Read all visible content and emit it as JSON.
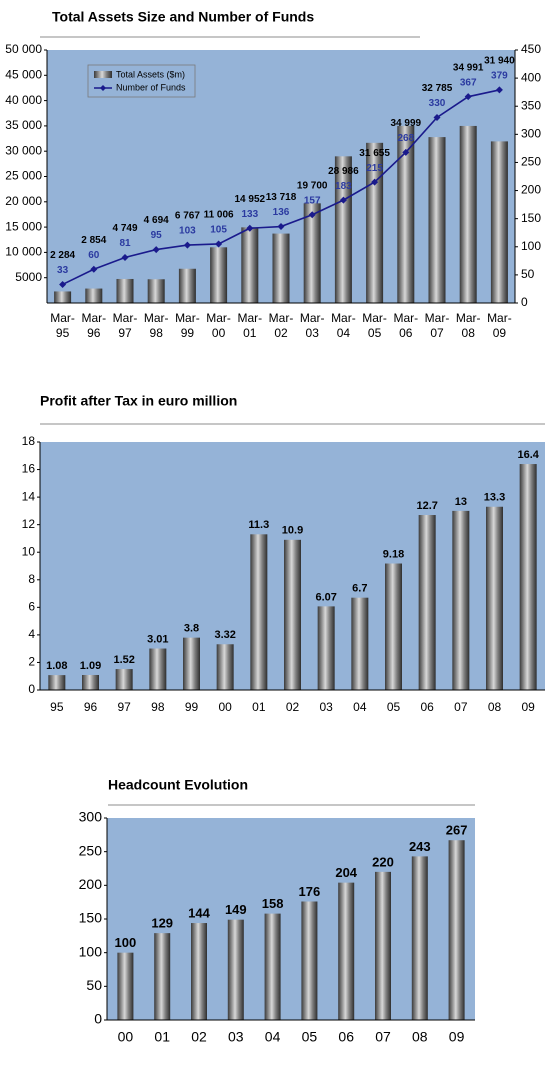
{
  "chart_data": [
    {
      "type": "bar-line",
      "title": "Total Assets Size and Number of Funds",
      "categories": [
        "Mar-95",
        "Mar-96",
        "Mar-97",
        "Mar-98",
        "Mar-99",
        "Mar-00",
        "Mar-01",
        "Mar-02",
        "Mar-03",
        "Mar-04",
        "Mar-05",
        "Mar-06",
        "Mar-07",
        "Mar-08",
        "Mar-09"
      ],
      "series": [
        {
          "name": "Total Assets ($m)",
          "color": "#7f7f7f",
          "values": [
            2284,
            2854,
            4749,
            4694,
            6767,
            11006,
            14952,
            13718,
            19700,
            28986,
            31655,
            34999,
            32785,
            34991,
            31940
          ],
          "value_labels": [
            "2 284",
            "2 854",
            "4 749",
            "4 694",
            "6 767",
            "11 006",
            "14 952",
            "13 718",
            "19 700",
            "28 986",
            "31 655",
            "34 999",
            "32 785",
            "34 991",
            "31 940"
          ]
        },
        {
          "name": "Number of Funds",
          "color": "#1a1a8c",
          "axis": "y2",
          "values": [
            33,
            60,
            81,
            95,
            103,
            105,
            133,
            136,
            157,
            183,
            215,
            268,
            330,
            367,
            379
          ]
        }
      ],
      "ylim": [
        0,
        50000
      ],
      "yticks": [
        5000,
        {
          "value": 10000,
          "label": "10 000"
        },
        {
          "value": 15000,
          "label": "15 000"
        },
        {
          "value": 20000,
          "label": "20 000"
        },
        {
          "value": 25000,
          "label": "25 000"
        },
        {
          "value": 30000,
          "label": "30 000"
        },
        {
          "value": 35000,
          "label": "35 000"
        },
        {
          "value": 40000,
          "label": "40 000"
        },
        {
          "value": 45000,
          "label": "45 000"
        },
        {
          "value": 50000,
          "label": "50 000"
        }
      ],
      "y2lim": [
        0,
        450
      ],
      "y2ticks": [
        0,
        50,
        100,
        150,
        200,
        250,
        300,
        350,
        400,
        450
      ],
      "background": "#95b3d7",
      "legend": "upper-left"
    },
    {
      "type": "bar",
      "title": "Profit after Tax in euro million",
      "categories": [
        "95",
        "96",
        "97",
        "98",
        "99",
        "00",
        "01",
        "02",
        "03",
        "04",
        "05",
        "06",
        "07",
        "08",
        "09"
      ],
      "values": [
        1.08,
        1.09,
        1.52,
        3.01,
        3.8,
        3.32,
        11.3,
        10.9,
        6.07,
        6.7,
        9.18,
        12.7,
        13,
        13.3,
        16.4
      ],
      "color": "#7f7f7f",
      "ylim": [
        0,
        18
      ],
      "yticks": [
        0,
        2,
        4,
        6,
        8,
        10,
        12,
        14,
        16,
        18
      ],
      "background": "#95b3d7"
    },
    {
      "type": "bar",
      "title": "Headcount Evolution",
      "categories": [
        "00",
        "01",
        "02",
        "03",
        "04",
        "05",
        "06",
        "07",
        "08",
        "09"
      ],
      "values": [
        100,
        129,
        144,
        149,
        158,
        176,
        204,
        220,
        243,
        267
      ],
      "color": "#7f7f7f",
      "ylim": [
        0,
        300
      ],
      "yticks": [
        0,
        50,
        100,
        150,
        200,
        250,
        300
      ],
      "background": "#95b3d7"
    }
  ]
}
